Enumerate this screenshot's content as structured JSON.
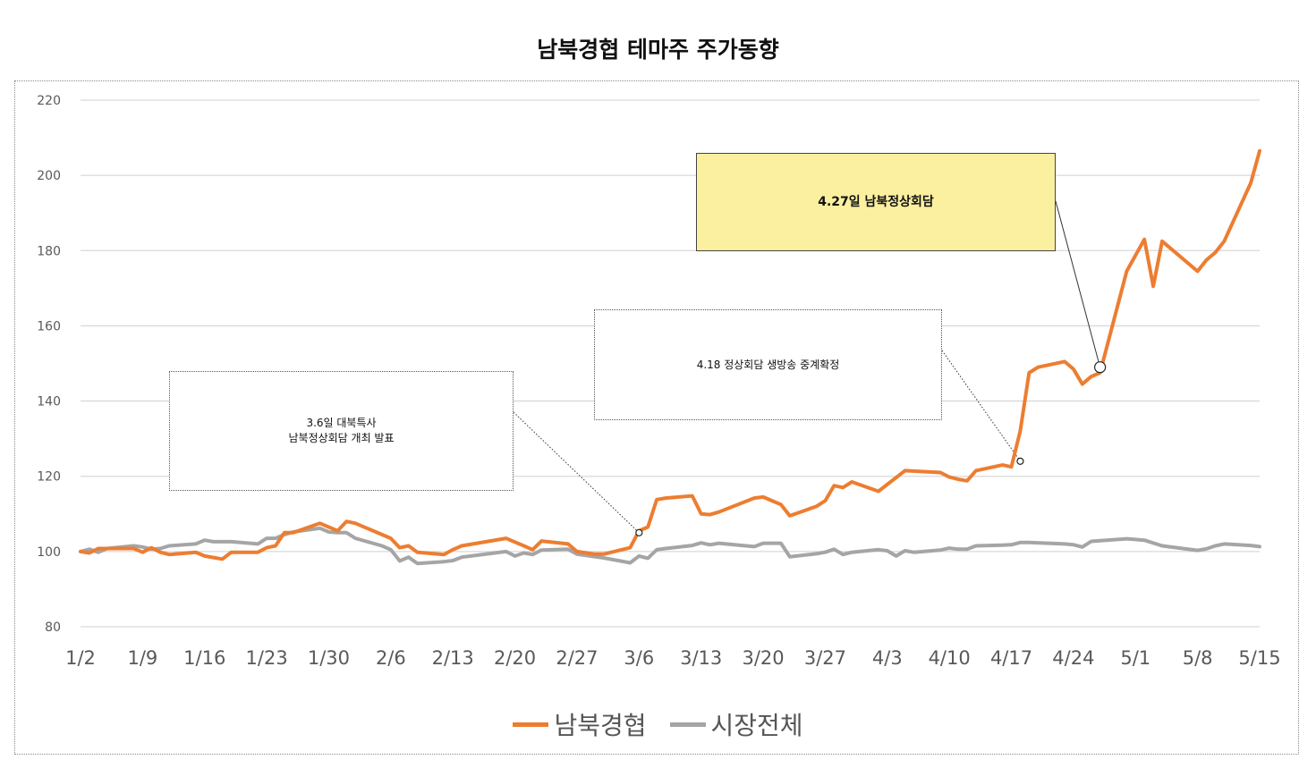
{
  "chart_data": {
    "type": "line",
    "title": "남북경협 테마주 주가동향",
    "ylim": [
      80,
      220
    ],
    "yticks": [
      80,
      100,
      120,
      140,
      160,
      180,
      200,
      220
    ],
    "xlim": [
      "1/2",
      "5/15"
    ],
    "xticks": [
      "1/2",
      "1/9",
      "1/16",
      "1/23",
      "1/30",
      "2/6",
      "2/13",
      "2/20",
      "2/27",
      "3/6",
      "3/13",
      "3/20",
      "3/27",
      "4/3",
      "4/10",
      "4/17",
      "4/24",
      "5/1",
      "5/8",
      "5/15"
    ],
    "grid": true,
    "legend": "bottom",
    "series": [
      {
        "name": "남북경협",
        "color": "#ED7D31",
        "points": [
          [
            "1/2",
            100
          ],
          [
            "1/3",
            99.6
          ],
          [
            "1/4",
            100.8
          ],
          [
            "1/5",
            100.8
          ],
          [
            "1/8",
            100.8
          ],
          [
            "1/9",
            99.8
          ],
          [
            "1/10",
            101
          ],
          [
            "1/11",
            99.8
          ],
          [
            "1/12",
            99.2
          ],
          [
            "1/15",
            99.8
          ],
          [
            "1/16",
            98.8
          ],
          [
            "1/17",
            98.4
          ],
          [
            "1/18",
            98
          ],
          [
            "1/19",
            99.8
          ],
          [
            "1/22",
            99.8
          ],
          [
            "1/23",
            101
          ],
          [
            "1/24",
            101.5
          ],
          [
            "1/25",
            105
          ],
          [
            "1/26",
            105
          ],
          [
            "1/29",
            107.5
          ],
          [
            "1/30",
            106.5
          ],
          [
            "1/31",
            105.5
          ],
          [
            "2/1",
            108
          ],
          [
            "2/2",
            107.5
          ],
          [
            "2/5",
            104.5
          ],
          [
            "2/6",
            103.5
          ],
          [
            "2/7",
            101
          ],
          [
            "2/8",
            101.5
          ],
          [
            "2/9",
            99.8
          ],
          [
            "2/12",
            99.2
          ],
          [
            "2/13",
            100.5
          ],
          [
            "2/14",
            101.5
          ],
          [
            "2/19",
            103.5
          ],
          [
            "2/20",
            102.5
          ],
          [
            "2/21",
            101.5
          ],
          [
            "2/22",
            100.5
          ],
          [
            "2/23",
            102.8
          ],
          [
            "2/26",
            102
          ],
          [
            "2/27",
            100
          ],
          [
            "3/1",
            99.3
          ],
          [
            "3/2",
            99.3
          ],
          [
            "3/5",
            101
          ],
          [
            "3/6",
            105.5
          ],
          [
            "3/7",
            106.5
          ],
          [
            "3/8",
            113.8
          ],
          [
            "3/9",
            114.2
          ],
          [
            "3/12",
            114.8
          ],
          [
            "3/13",
            110
          ],
          [
            "3/14",
            109.8
          ],
          [
            "3/15",
            110.5
          ],
          [
            "3/19",
            114.2
          ],
          [
            "3/20",
            114.5
          ],
          [
            "3/21",
            113.5
          ],
          [
            "3/22",
            112.5
          ],
          [
            "3/23",
            109.5
          ],
          [
            "3/26",
            112
          ],
          [
            "3/27",
            113.5
          ],
          [
            "3/28",
            117.5
          ],
          [
            "3/29",
            117
          ],
          [
            "3/30",
            118.5
          ],
          [
            "4/2",
            116
          ],
          [
            "4/5",
            121.5
          ],
          [
            "4/9",
            121
          ],
          [
            "4/10",
            119.8
          ],
          [
            "4/11",
            119.2
          ],
          [
            "4/12",
            118.8
          ],
          [
            "4/13",
            121.5
          ],
          [
            "4/16",
            123
          ],
          [
            "4/17",
            122.5
          ],
          [
            "4/18",
            132
          ],
          [
            "4/19",
            147.5
          ],
          [
            "4/20",
            149
          ],
          [
            "4/23",
            150.5
          ],
          [
            "4/24",
            148.5
          ],
          [
            "4/25",
            144.5
          ],
          [
            "4/26",
            146.5
          ],
          [
            "4/27",
            147.5
          ],
          [
            "4/30",
            174.5
          ],
          [
            "5/2",
            183
          ],
          [
            "5/3",
            170.5
          ],
          [
            "5/4",
            182.5
          ],
          [
            "5/8",
            174.5
          ],
          [
            "5/9",
            177.5
          ],
          [
            "5/10",
            179.5
          ],
          [
            "5/11",
            182.5
          ],
          [
            "5/14",
            198
          ],
          [
            "5/15",
            206.5
          ]
        ]
      },
      {
        "name": "시장전체",
        "color": "#A5A5A5",
        "points": [
          [
            "1/2",
            100
          ],
          [
            "1/3",
            100.6
          ],
          [
            "1/4",
            99.8
          ],
          [
            "1/5",
            100.8
          ],
          [
            "1/8",
            101.5
          ],
          [
            "1/9",
            101.2
          ],
          [
            "1/10",
            100.6
          ],
          [
            "1/11",
            100.8
          ],
          [
            "1/12",
            101.5
          ],
          [
            "1/15",
            102
          ],
          [
            "1/16",
            103
          ],
          [
            "1/17",
            102.6
          ],
          [
            "1/18",
            102.6
          ],
          [
            "1/19",
            102.6
          ],
          [
            "1/22",
            102
          ],
          [
            "1/23",
            103.5
          ],
          [
            "1/24",
            103.5
          ],
          [
            "1/25",
            104.5
          ],
          [
            "1/26",
            105.2
          ],
          [
            "1/29",
            106.2
          ],
          [
            "1/30",
            105.2
          ],
          [
            "1/31",
            105
          ],
          [
            "2/1",
            105
          ],
          [
            "2/2",
            103.5
          ],
          [
            "2/5",
            101.5
          ],
          [
            "2/6",
            100.5
          ],
          [
            "2/7",
            97.5
          ],
          [
            "2/8",
            98.5
          ],
          [
            "2/9",
            96.8
          ],
          [
            "2/12",
            97.3
          ],
          [
            "2/13",
            97.6
          ],
          [
            "2/14",
            98.5
          ],
          [
            "2/19",
            100
          ],
          [
            "2/20",
            98.8
          ],
          [
            "2/21",
            99.6
          ],
          [
            "2/22",
            99.2
          ],
          [
            "2/23",
            100.4
          ],
          [
            "2/26",
            100.6
          ],
          [
            "2/27",
            99.3
          ],
          [
            "3/1",
            98.6
          ],
          [
            "3/2",
            98.3
          ],
          [
            "3/5",
            97
          ],
          [
            "3/6",
            98.8
          ],
          [
            "3/7",
            98.2
          ],
          [
            "3/8",
            100.5
          ],
          [
            "3/9",
            100.8
          ],
          [
            "3/12",
            101.6
          ],
          [
            "3/13",
            102.3
          ],
          [
            "3/14",
            101.8
          ],
          [
            "3/15",
            102.2
          ],
          [
            "3/19",
            101.3
          ],
          [
            "3/20",
            102.2
          ],
          [
            "3/21",
            102.2
          ],
          [
            "3/22",
            102.2
          ],
          [
            "3/23",
            98.6
          ],
          [
            "3/26",
            99.4
          ],
          [
            "3/27",
            99.8
          ],
          [
            "3/28",
            100.6
          ],
          [
            "3/29",
            99.2
          ],
          [
            "3/30",
            99.8
          ],
          [
            "4/2",
            100.5
          ],
          [
            "4/3",
            100.2
          ],
          [
            "4/4",
            98.8
          ],
          [
            "4/5",
            100.2
          ],
          [
            "4/6",
            99.8
          ],
          [
            "4/9",
            100.4
          ],
          [
            "4/10",
            100.9
          ],
          [
            "4/11",
            100.6
          ],
          [
            "4/12",
            100.6
          ],
          [
            "4/13",
            101.5
          ],
          [
            "4/16",
            101.7
          ],
          [
            "4/17",
            101.8
          ],
          [
            "4/18",
            102.4
          ],
          [
            "4/19",
            102.4
          ],
          [
            "4/23",
            102
          ],
          [
            "4/24",
            101.8
          ],
          [
            "4/25",
            101.2
          ],
          [
            "4/26",
            102.7
          ],
          [
            "4/30",
            103.4
          ],
          [
            "5/2",
            103
          ],
          [
            "5/4",
            101.5
          ],
          [
            "5/8",
            100.3
          ],
          [
            "5/9",
            100.7
          ],
          [
            "5/10",
            101.5
          ],
          [
            "5/11",
            102
          ],
          [
            "5/14",
            101.6
          ],
          [
            "5/15",
            101.3
          ]
        ]
      }
    ],
    "annotations": [
      {
        "id": "ann-1",
        "text": "3.6일 대북특사\n남북정상회담 개최 발표",
        "x": "3/6",
        "y": 105,
        "style": "dotted",
        "marker": "small"
      },
      {
        "id": "ann-2",
        "text": "4.18 정상회담 생방송 중계확정",
        "x": "4/18",
        "y": 124,
        "style": "dotted",
        "marker": "small"
      },
      {
        "id": "ann-3",
        "text": "4.27일 남북정상회담",
        "x": "4/27",
        "y": 149,
        "style": "highlight",
        "marker": "large"
      }
    ]
  }
}
